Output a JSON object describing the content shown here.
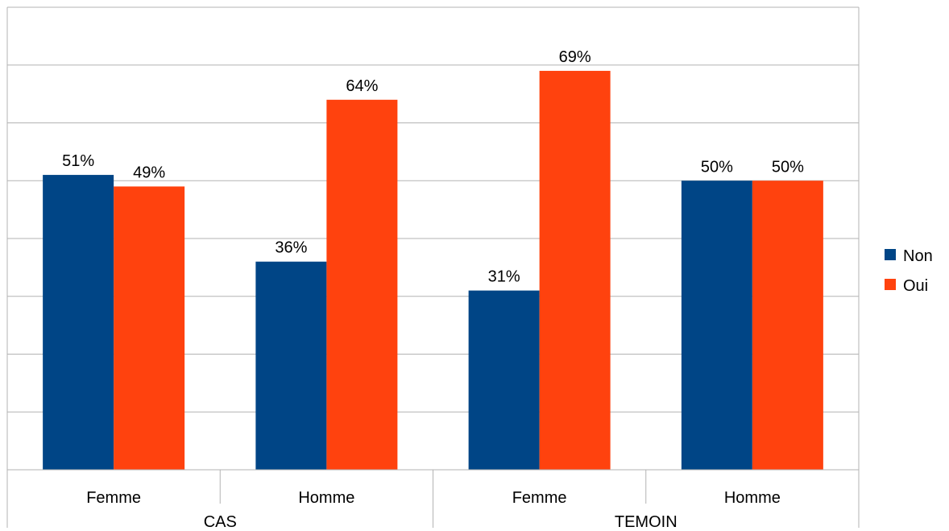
{
  "chart_data": {
    "type": "bar",
    "groups": [
      {
        "label": "CAS",
        "categories": [
          "Femme",
          "Homme"
        ]
      },
      {
        "label": "TEMOIN",
        "categories": [
          "Femme",
          "Homme"
        ]
      }
    ],
    "categories": [
      "Femme",
      "Homme",
      "Femme",
      "Homme"
    ],
    "series": [
      {
        "name": "Non",
        "color": "#004586",
        "values": [
          51,
          36,
          31,
          50
        ],
        "labels": [
          "51%",
          "36%",
          "31%",
          "50%"
        ]
      },
      {
        "name": "Oui",
        "color": "#ff420e",
        "values": [
          49,
          64,
          69,
          50
        ],
        "labels": [
          "49%",
          "64%",
          "69%",
          "50%"
        ]
      }
    ],
    "ylim": [
      0,
      80
    ],
    "grid": true,
    "y_tick_labels_shown": false,
    "legend_position": "right"
  }
}
